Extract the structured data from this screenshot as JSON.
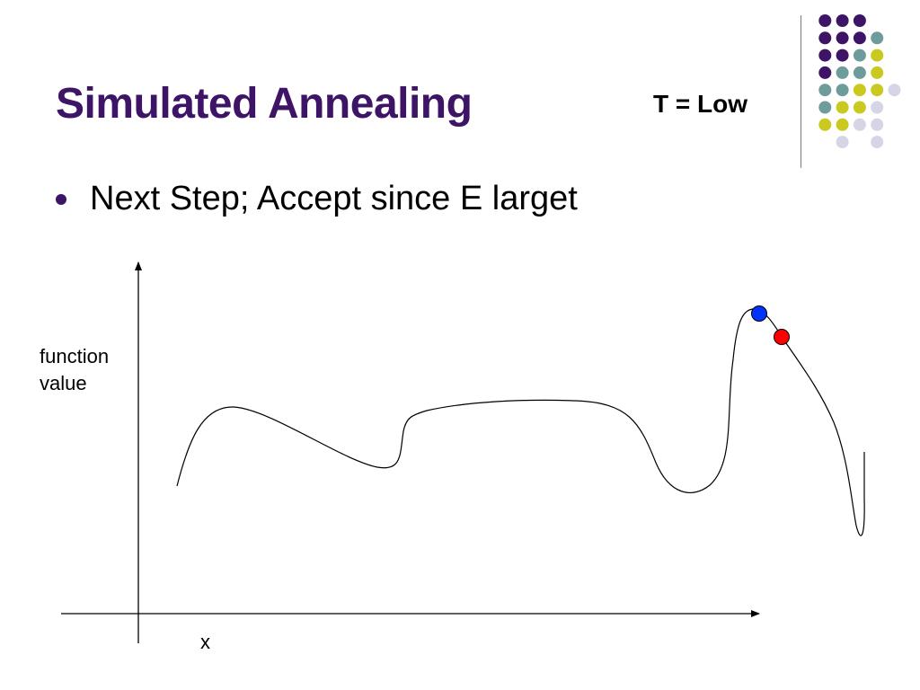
{
  "slide": {
    "title": "Simulated Annealing",
    "temperature_label": "T = Low",
    "bullets": [
      "Next Step; Accept since E larget"
    ]
  },
  "diagram": {
    "y_axis_label_line1": "function",
    "y_axis_label_line2": "value",
    "x_axis_label": "x",
    "markers": [
      {
        "name": "current-state",
        "color": "#0033ff"
      },
      {
        "name": "next-state",
        "color": "#ff0000"
      }
    ]
  },
  "theme": {
    "title_color": "#3d1466",
    "dot_colors": {
      "purple": "#3d1466",
      "teal": "#6e9c9b",
      "olive": "#c9c920",
      "lavender": "#d5d5e6"
    }
  }
}
